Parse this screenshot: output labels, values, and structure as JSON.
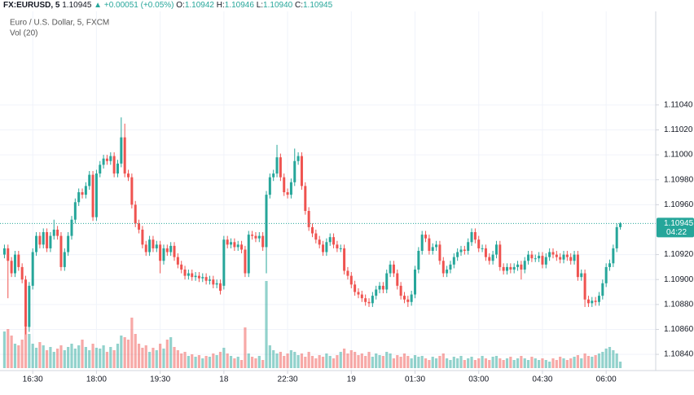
{
  "header": {
    "symbol": "FX:EURUSD, 5",
    "last": "1.10945",
    "arrow": "▲",
    "change": "+0.00051 (+0.05%)",
    "open_label": "O:",
    "open": "1.10942",
    "high_label": "H:",
    "high": "1.10946",
    "low_label": "L:",
    "low": "1.10940",
    "close_label": "C:",
    "close": "1.10945"
  },
  "chart_data": {
    "type": "candlestick",
    "title": "Euro / U.S. Dollar, 5, FXCM",
    "volume_label": "Vol (20)",
    "up_color": "#26a69a",
    "down_color": "#ef5350",
    "grid": true,
    "countdown": "04:22",
    "ylim": [
      1.10827,
      1.11115
    ],
    "yticks": [
      {
        "value": 1.1104,
        "label": "1.11040"
      },
      {
        "value": 1.1102,
        "label": "1.11020"
      },
      {
        "value": 1.11,
        "label": "1.11000"
      },
      {
        "value": 1.1098,
        "label": "1.10980"
      },
      {
        "value": 1.1096,
        "label": "1.10960"
      },
      {
        "value": 1.1092,
        "label": "1.10920"
      },
      {
        "value": 1.109,
        "label": "1.10900"
      },
      {
        "value": 1.1088,
        "label": "1.10880"
      },
      {
        "value": 1.1086,
        "label": "1.10860"
      },
      {
        "value": 1.1084,
        "label": "1.10840"
      }
    ],
    "xlim": [
      -1.25,
      184
    ],
    "xticks": [
      {
        "value": 8,
        "label": "16:30"
      },
      {
        "value": 26,
        "label": "18:00"
      },
      {
        "value": 44,
        "label": "19:30"
      },
      {
        "value": 62,
        "label": "18"
      },
      {
        "value": 80,
        "label": "22:30"
      },
      {
        "value": 98,
        "label": "19"
      },
      {
        "value": 116,
        "label": "01:30"
      },
      {
        "value": 134,
        "label": "03:00"
      },
      {
        "value": 152,
        "label": "04:30"
      },
      {
        "value": 170,
        "label": "06:00"
      }
    ],
    "candles": [
      [
        1.1092,
        1.10928,
        1.10917,
        1.10925
      ],
      [
        1.10925,
        1.10928,
        1.10885,
        1.10915
      ],
      [
        1.10915,
        1.10918,
        1.10902,
        1.10905
      ],
      [
        1.10905,
        1.10923,
        1.10902,
        1.1092
      ],
      [
        1.1092,
        1.10923,
        1.10907,
        1.1091
      ],
      [
        1.1091,
        1.10913,
        1.10897,
        1.109
      ],
      [
        1.109,
        1.10903,
        1.10856,
        1.10862
      ],
      [
        1.10862,
        1.10898,
        1.10858,
        1.10895
      ],
      [
        1.10895,
        1.10925,
        1.10892,
        1.10922
      ],
      [
        1.10922,
        1.10938,
        1.10919,
        1.10935
      ],
      [
        1.10935,
        1.10938,
        1.10925,
        1.10928
      ],
      [
        1.10928,
        1.10941,
        1.10925,
        1.10938
      ],
      [
        1.10938,
        1.10941,
        1.10922,
        1.10925
      ],
      [
        1.10925,
        1.10938,
        1.10922,
        1.10935
      ],
      [
        1.10935,
        1.10948,
        1.10932,
        1.1094
      ],
      [
        1.1094,
        1.10943,
        1.10932,
        1.10935
      ],
      [
        1.10935,
        1.10938,
        1.10907,
        1.1091
      ],
      [
        1.1091,
        1.10925,
        1.10907,
        1.10922
      ],
      [
        1.10922,
        1.10938,
        1.10919,
        1.10935
      ],
      [
        1.10935,
        1.10951,
        1.10932,
        1.10948
      ],
      [
        1.10948,
        1.10965,
        1.10945,
        1.10962
      ],
      [
        1.10962,
        1.10973,
        1.10959,
        1.1097
      ],
      [
        1.1097,
        1.10973,
        1.10965,
        1.10968
      ],
      [
        1.10968,
        1.10978,
        1.10965,
        1.10975
      ],
      [
        1.10975,
        1.10987,
        1.10972,
        1.10984
      ],
      [
        1.10984,
        1.10987,
        1.10947,
        1.1095
      ],
      [
        1.1095,
        1.10988,
        1.10947,
        1.10985
      ],
      [
        1.10985,
        1.10995,
        1.10982,
        1.10992
      ],
      [
        1.10992,
        1.11,
        1.10989,
        1.10997
      ],
      [
        1.10997,
        1.11,
        1.10992,
        1.10995
      ],
      [
        1.10995,
        1.11002,
        1.10992,
        1.10999
      ],
      [
        1.10999,
        1.11002,
        1.10982,
        1.10985
      ],
      [
        1.10985,
        1.10996,
        1.10982,
        1.10993
      ],
      [
        1.10993,
        1.1103,
        1.1099,
        1.11014
      ],
      [
        1.11014,
        1.11025,
        1.10982,
        1.10985
      ],
      [
        1.10985,
        1.10988,
        1.10979,
        1.10982
      ],
      [
        1.10982,
        1.10985,
        1.10957,
        1.1096
      ],
      [
        1.1096,
        1.10963,
        1.10942,
        1.10945
      ],
      [
        1.10945,
        1.10948,
        1.10937,
        1.1094
      ],
      [
        1.1094,
        1.10943,
        1.10925,
        1.10928
      ],
      [
        1.10928,
        1.10931,
        1.10919,
        1.10922
      ],
      [
        1.10922,
        1.10935,
        1.10919,
        1.10932
      ],
      [
        1.10932,
        1.10935,
        1.10922,
        1.10925
      ],
      [
        1.10925,
        1.10931,
        1.10922,
        1.10928
      ],
      [
        1.10928,
        1.10931,
        1.10905,
        1.10915
      ],
      [
        1.10915,
        1.10928,
        1.10912,
        1.10925
      ],
      [
        1.10925,
        1.10928,
        1.10919,
        1.10922
      ],
      [
        1.10922,
        1.1093,
        1.10919,
        1.10927
      ],
      [
        1.10927,
        1.1093,
        1.10915,
        1.10918
      ],
      [
        1.10918,
        1.10921,
        1.10909,
        1.10912
      ],
      [
        1.10912,
        1.10915,
        1.10905,
        1.10908
      ],
      [
        1.10908,
        1.10911,
        1.109,
        1.10903
      ],
      [
        1.10903,
        1.10908,
        1.109,
        1.10905
      ],
      [
        1.10905,
        1.10908,
        1.10899,
        1.10902
      ],
      [
        1.10902,
        1.10906,
        1.10899,
        1.10903
      ],
      [
        1.10903,
        1.10906,
        1.10898,
        1.10901
      ],
      [
        1.10901,
        1.10905,
        1.10898,
        1.10902
      ],
      [
        1.10902,
        1.10905,
        1.10896,
        1.10899
      ],
      [
        1.10899,
        1.10903,
        1.10896,
        1.109
      ],
      [
        1.109,
        1.10903,
        1.10893,
        1.10896
      ],
      [
        1.10896,
        1.109,
        1.10893,
        1.10897
      ],
      [
        1.10897,
        1.109,
        1.10888,
        1.10891
      ],
      [
        1.10895,
        1.10935,
        1.10892,
        1.10932
      ],
      [
        1.10932,
        1.10935,
        1.10925,
        1.10928
      ],
      [
        1.10928,
        1.10933,
        1.10925,
        1.1093
      ],
      [
        1.1093,
        1.10933,
        1.10923,
        1.10926
      ],
      [
        1.10926,
        1.10931,
        1.10923,
        1.10928
      ],
      [
        1.10928,
        1.10931,
        1.10921,
        1.10924
      ],
      [
        1.10924,
        1.10927,
        1.10902,
        1.10905
      ],
      [
        1.10905,
        1.10939,
        1.10902,
        1.10936
      ],
      [
        1.10936,
        1.10939,
        1.10932,
        1.10935
      ],
      [
        1.10935,
        1.10938,
        1.1093,
        1.10933
      ],
      [
        1.10933,
        1.10938,
        1.1093,
        1.10935
      ],
      [
        1.10935,
        1.10938,
        1.10923,
        1.10926
      ],
      [
        1.10926,
        1.10971,
        1.10905,
        1.10968
      ],
      [
        1.10968,
        1.10985,
        1.10965,
        1.10982
      ],
      [
        1.10982,
        1.10988,
        1.10979,
        1.10985
      ],
      [
        1.10985,
        1.11008,
        1.10982,
        1.10998
      ],
      [
        1.10998,
        1.11001,
        1.10979,
        1.10982
      ],
      [
        1.10982,
        1.10985,
        1.10967,
        1.1097
      ],
      [
        1.1097,
        1.10973,
        1.10965,
        1.10968
      ],
      [
        1.10968,
        1.10981,
        1.10965,
        1.10978
      ],
      [
        1.10978,
        1.11005,
        1.10975,
        1.10995
      ],
      [
        1.10995,
        1.11002,
        1.10992,
        1.10999
      ],
      [
        1.10999,
        1.11002,
        1.10972,
        1.10975
      ],
      [
        1.10975,
        1.10978,
        1.10952,
        1.10955
      ],
      [
        1.10955,
        1.10958,
        1.10939,
        1.10942
      ],
      [
        1.10942,
        1.10945,
        1.10934,
        1.10937
      ],
      [
        1.10937,
        1.1094,
        1.10929,
        1.10932
      ],
      [
        1.10932,
        1.10935,
        1.10925,
        1.10928
      ],
      [
        1.10928,
        1.10931,
        1.10919,
        1.10922
      ],
      [
        1.10922,
        1.10933,
        1.10919,
        1.1093
      ],
      [
        1.1093,
        1.10937,
        1.10927,
        1.10934
      ],
      [
        1.10934,
        1.10937,
        1.10925,
        1.10928
      ],
      [
        1.10928,
        1.10931,
        1.10922,
        1.10925
      ],
      [
        1.10925,
        1.10928,
        1.10922,
        1.10925
      ],
      [
        1.10925,
        1.10928,
        1.10904,
        1.10907
      ],
      [
        1.10907,
        1.1091,
        1.109,
        1.10903
      ],
      [
        1.10903,
        1.10906,
        1.10893,
        1.10896
      ],
      [
        1.10896,
        1.10899,
        1.10887,
        1.1089
      ],
      [
        1.1089,
        1.10893,
        1.10885,
        1.10888
      ],
      [
        1.10888,
        1.10891,
        1.10882,
        1.10885
      ],
      [
        1.10885,
        1.10888,
        1.10879,
        1.10882
      ],
      [
        1.10882,
        1.10885,
        1.10878,
        1.10881
      ],
      [
        1.10881,
        1.1089,
        1.10878,
        1.10887
      ],
      [
        1.10887,
        1.10895,
        1.10884,
        1.10892
      ],
      [
        1.10892,
        1.10898,
        1.10889,
        1.10895
      ],
      [
        1.10895,
        1.10898,
        1.10889,
        1.10892
      ],
      [
        1.10892,
        1.10908,
        1.10889,
        1.10905
      ],
      [
        1.10905,
        1.10915,
        1.10902,
        1.10912
      ],
      [
        1.10912,
        1.10915,
        1.10902,
        1.10905
      ],
      [
        1.10905,
        1.10908,
        1.10892,
        1.10895
      ],
      [
        1.10895,
        1.10898,
        1.10884,
        1.10887
      ],
      [
        1.10887,
        1.1089,
        1.10881,
        1.10884
      ],
      [
        1.10884,
        1.10887,
        1.10878,
        1.10882
      ],
      [
        1.10882,
        1.10891,
        1.10879,
        1.10888
      ],
      [
        1.10888,
        1.10911,
        1.10885,
        1.10908
      ],
      [
        1.10908,
        1.10926,
        1.10905,
        1.10923
      ],
      [
        1.10923,
        1.10939,
        1.1092,
        1.10936
      ],
      [
        1.10936,
        1.10939,
        1.1093,
        1.10933
      ],
      [
        1.10933,
        1.10936,
        1.1092,
        1.10923
      ],
      [
        1.10923,
        1.10929,
        1.1092,
        1.10926
      ],
      [
        1.10926,
        1.10931,
        1.10923,
        1.10928
      ],
      [
        1.10928,
        1.10931,
        1.10912,
        1.10915
      ],
      [
        1.10915,
        1.10918,
        1.10902,
        1.10905
      ],
      [
        1.10905,
        1.10911,
        1.10902,
        1.10908
      ],
      [
        1.10908,
        1.10915,
        1.10905,
        1.10912
      ],
      [
        1.10912,
        1.10921,
        1.10909,
        1.10918
      ],
      [
        1.10918,
        1.10925,
        1.10915,
        1.10922
      ],
      [
        1.10922,
        1.10927,
        1.10919,
        1.10924
      ],
      [
        1.10924,
        1.10927,
        1.1092,
        1.10923
      ],
      [
        1.10923,
        1.10933,
        1.1092,
        1.1093
      ],
      [
        1.1093,
        1.10941,
        1.10927,
        1.10938
      ],
      [
        1.10938,
        1.10941,
        1.10929,
        1.10932
      ],
      [
        1.10932,
        1.10935,
        1.10922,
        1.10925
      ],
      [
        1.10925,
        1.10928,
        1.10922,
        1.10925
      ],
      [
        1.10925,
        1.10928,
        1.10915,
        1.10918
      ],
      [
        1.10918,
        1.10921,
        1.10912,
        1.10915
      ],
      [
        1.10915,
        1.10923,
        1.10912,
        1.1092
      ],
      [
        1.1092,
        1.10931,
        1.10917,
        1.10928
      ],
      [
        1.10928,
        1.10931,
        1.10907,
        1.1091
      ],
      [
        1.1091,
        1.10913,
        1.10904,
        1.10907
      ],
      [
        1.10907,
        1.10913,
        1.10904,
        1.1091
      ],
      [
        1.1091,
        1.10913,
        1.10905,
        1.10908
      ],
      [
        1.10908,
        1.10913,
        1.10905,
        1.1091
      ],
      [
        1.1091,
        1.10915,
        1.10907,
        1.10912
      ],
      [
        1.10912,
        1.10915,
        1.109,
        1.10908
      ],
      [
        1.10908,
        1.10918,
        1.10905,
        1.10915
      ],
      [
        1.10915,
        1.10923,
        1.10912,
        1.1092
      ],
      [
        1.1092,
        1.10923,
        1.10914,
        1.10917
      ],
      [
        1.10917,
        1.1092,
        1.10914,
        1.10917
      ],
      [
        1.10917,
        1.10922,
        1.10914,
        1.10919
      ],
      [
        1.10919,
        1.10922,
        1.10909,
        1.10912
      ],
      [
        1.10912,
        1.10921,
        1.10909,
        1.10918
      ],
      [
        1.10918,
        1.10925,
        1.10915,
        1.10922
      ],
      [
        1.10922,
        1.10925,
        1.10917,
        1.1092
      ],
      [
        1.1092,
        1.10923,
        1.10915,
        1.10918
      ],
      [
        1.10918,
        1.10921,
        1.10913,
        1.10916
      ],
      [
        1.10916,
        1.10923,
        1.10913,
        1.1092
      ],
      [
        1.1092,
        1.10923,
        1.10915,
        1.10918
      ],
      [
        1.10918,
        1.10921,
        1.10912,
        1.10915
      ],
      [
        1.10915,
        1.10923,
        1.10912,
        1.1092
      ],
      [
        1.1092,
        1.10923,
        1.10899,
        1.10902
      ],
      [
        1.10902,
        1.10908,
        1.10899,
        1.10905
      ],
      [
        1.10905,
        1.10908,
        1.10878,
        1.10884
      ],
      [
        1.10884,
        1.10887,
        1.10878,
        1.10881
      ],
      [
        1.10881,
        1.10886,
        1.10878,
        1.10883
      ],
      [
        1.10883,
        1.10886,
        1.10879,
        1.10882
      ],
      [
        1.10882,
        1.1089,
        1.10879,
        1.10887
      ],
      [
        1.10887,
        1.109,
        1.10884,
        1.10897
      ],
      [
        1.10897,
        1.10913,
        1.10894,
        1.1091
      ],
      [
        1.1091,
        1.10916,
        1.10907,
        1.10913
      ],
      [
        1.10913,
        1.10928,
        1.1091,
        1.10925
      ],
      [
        1.10925,
        1.10945,
        1.10922,
        1.10942
      ],
      [
        1.10942,
        1.10946,
        1.1094,
        1.10945
      ]
    ],
    "volumes": [
      45,
      48,
      40,
      30,
      28,
      35,
      50,
      42,
      30,
      25,
      32,
      28,
      22,
      26,
      20,
      24,
      28,
      22,
      26,
      30,
      24,
      28,
      35,
      26,
      22,
      30,
      25,
      24,
      28,
      20,
      26,
      22,
      30,
      40,
      38,
      35,
      62,
      42,
      30,
      25,
      28,
      20,
      25,
      22,
      30,
      24,
      35,
      38,
      26,
      22,
      18,
      20,
      15,
      17,
      14,
      16,
      12,
      15,
      14,
      18,
      16,
      20,
      25,
      18,
      15,
      12,
      14,
      10,
      50,
      18,
      14,
      12,
      15,
      10,
      107,
      28,
      22,
      18,
      20,
      15,
      18,
      22,
      20,
      16,
      18,
      14,
      20,
      15,
      12,
      16,
      14,
      18,
      15,
      12,
      16,
      20,
      24,
      18,
      22,
      20,
      16,
      18,
      15,
      20,
      14,
      18,
      16,
      15,
      20,
      18,
      12,
      16,
      14,
      18,
      15,
      12,
      16,
      14,
      15,
      12,
      10,
      14,
      12,
      15,
      18,
      12,
      10,
      14,
      12,
      15,
      10,
      12,
      14,
      10,
      12,
      15,
      12,
      10,
      14,
      15,
      12,
      10,
      12,
      14,
      10,
      12,
      15,
      12,
      10,
      14,
      12,
      10,
      12,
      10,
      8,
      12,
      10,
      14,
      12,
      10,
      12,
      14,
      16,
      12,
      18,
      15,
      14,
      16,
      18,
      20,
      24,
      26,
      22,
      18,
      8
    ]
  }
}
